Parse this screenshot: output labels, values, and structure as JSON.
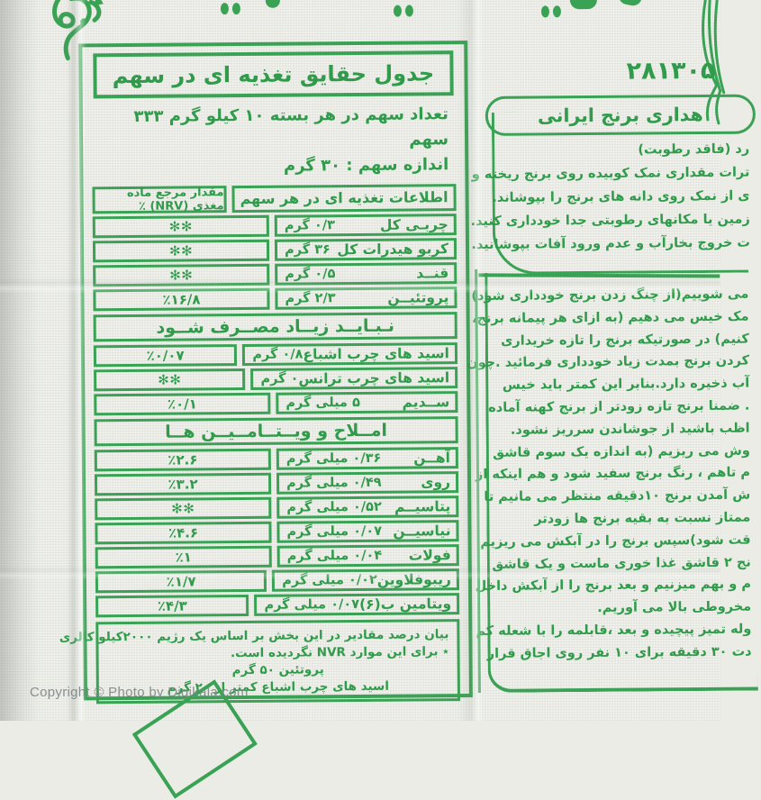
{
  "colors": {
    "print_green": "#3aa254",
    "fabric_background": "#eaece5",
    "watermark_gray": "#7d8586"
  },
  "watermark_text": "Copyright © Photo by Digikala.com",
  "nutrition_table": {
    "title": "جدول حقایق تغذیه ای در سهم",
    "serving_line1": "تعداد سهم در هر بسته ۱۰ کیلو گرم ۳۳۳ سهم",
    "serving_line2": "اندازه سهم : ۳۰ گرم",
    "header": {
      "info_col": "اطلاعات تغذیه ای در هر سهم",
      "nrv_col": "مقدار مرجع ماده مغذی (NRV) ٪"
    },
    "sections": [
      {
        "bar": null,
        "rows": [
          {
            "name": "چربـی کل",
            "amount": "۰/۳ گرم",
            "nrv": "✻✻"
          },
          {
            "name": "کربو هیدرات کل",
            "amount": "۳۶ گرم",
            "nrv": "✻✻"
          },
          {
            "name": "قنــد",
            "amount": "۰/۵ گرم",
            "nrv": "✻✻"
          },
          {
            "name": "پروتئیــن",
            "amount": "۲/۳ گرم",
            "nrv": "٪۱۶/۸"
          }
        ]
      },
      {
        "bar": "نـبـایــد زیــاد مصــرف شــود",
        "rows": [
          {
            "name": "اسید های چرب اشباع",
            "amount": "۰/۸ گرم",
            "nrv": "٪۰/۰۷"
          },
          {
            "name": "اسید های چرب ترانس",
            "amount": "۰ گرم",
            "nrv": "✻✻"
          },
          {
            "name": "ســدیم",
            "amount": "۵ میلی گرم",
            "nrv": "٪۰/۱"
          }
        ]
      },
      {
        "bar": "امــلاح و ویــتــامــیــن هــا",
        "rows": [
          {
            "name": "آهــن",
            "amount": "۰/۳۶ میلی گرم",
            "nrv": "٪۲.۶"
          },
          {
            "name": "روی",
            "amount": "۰/۴۹ میلی گرم",
            "nrv": "٪۳.۲"
          },
          {
            "name": "پتاسیــم",
            "amount": "۰/۵۲ میلی گرم",
            "nrv": "✻✻"
          },
          {
            "name": "نیاسیــن",
            "amount": "۰/۰۷ میلی گرم",
            "nrv": "٪۴.۶"
          },
          {
            "name": "فولات",
            "amount": "۰/۰۴ میلی گرم",
            "nrv": "٪۱"
          },
          {
            "name": "ریبوفلاوین",
            "amount": "۰/۰۲ میلی گرم",
            "nrv": "٪۱/۷"
          },
          {
            "name": "ویتامین ب(۶)",
            "amount": "۰/۰۷ میلی گرم",
            "nrv": "٪۴/۳"
          }
        ]
      }
    ],
    "notes": [
      "بیان درصد مقادیر در این بخش بر اساس یک رژیم ۲۰۰۰کیلو کالری",
      "٭ برای این موارد NVR نگردیده است.",
      "پروتئین ۵۰ گرم",
      "اسید های چرب اشباع کمتر از ۲۰ گرم"
    ]
  },
  "right_panel": {
    "pack_number": "۲۸۱۳۰۵",
    "storage_title_visible": "هداری برنج ایرانی",
    "intro_lines": [
      "رد (فاقد رطوبت)",
      "ترات مقداری نمک کوبیده روی برنج ریخته و",
      "ی از نمک روی دانه های برنج را بپوشاند.",
      "زمین یا مکانهای رطوبتی جدا خودداری کنید.",
      "ت خروج بخارآب و عدم ورود آفات بپوشانید."
    ],
    "body_lines": [
      "می شوییم(از چنگ زدن برنج خودداری شود)",
      "مک خیس می دهیم (به ازای هر پیمانه برنج،",
      "کنیم) در صورتیکه برنج را تازه خریداری",
      "کردن برنج بمدت زیاد خودداری فرمائید .چون",
      "آب ذخیره دارد.بنابر این کمتر باید خیس",
      ". ضمنا برنج تازه زودتر از برنج کهنه آماده",
      "اظب باشید از جوشاندن سرریز نشود.",
      "وش می ریزیم (به اندازه یک سوم قاشق",
      "م تاهم ، رنگ برنج سفید شود و هم اینکه از",
      "ش آمدن برنج ۱۰دقیقه منتظر می مانیم تا",
      "ممتاز نسبت به بقیه برنج ها زودتر",
      "قت شود)سپس برنج را در آبکش می ریزیم",
      "نج ۲ قاشق غذا خوری ماست و یک قاشق",
      "م و بهم میزنیم و بعد برنج را از آبکش داخل",
      "مخروطی بالا می آوریم.",
      "وله تمیز پیچیده و بعد ،قابلمه را با شعله کم",
      "دت ۳۰ دقیقه برای ۱۰ نفر روی اجاق قرار"
    ]
  },
  "decorations": {
    "top_left": "arabesque-floral-ornament",
    "top_center": "calligraphy-fragments",
    "top_right": "leaf-branch-ornament",
    "bottom_left": "ribbon-corner-fragment"
  }
}
